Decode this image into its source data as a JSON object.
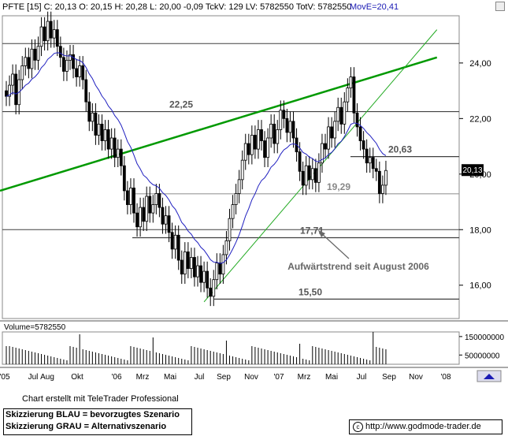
{
  "header": {
    "symbol_line": "PFTE [15] C: 20,13 O: 20,15 H: 20,28 L: 20,00 -0,09 TckV: 129 LV: 5782550 TotV: 5782550",
    "moving_average": "MovE=20,41"
  },
  "colors": {
    "candle_up": "#ffffff",
    "candle_down": "#000000",
    "moving_average": "#2020c0",
    "trend_main": "#009900",
    "trend_up": "#22aa22",
    "support_resistance": "#404040",
    "grid": "#aaaaaa"
  },
  "chart_data": {
    "type": "candlestick",
    "title": "",
    "y_axis": {
      "ticks": [
        "24,00",
        "22,00",
        "20,00",
        "18,00",
        "16,00"
      ],
      "ylim": [
        14.8,
        25.7
      ]
    },
    "x_axis": {
      "ticks": [
        "'05",
        "Jul",
        "Aug",
        "Okt",
        "'06",
        "Mrz",
        "Mai",
        "Jul",
        "Sep",
        "Nov",
        "'07",
        "Mrz",
        "Mai",
        "Jul",
        "Sep",
        "Nov",
        "'08"
      ]
    },
    "last_price_label": "20,13",
    "levels": [
      {
        "label": "22,25",
        "value": 22.25
      },
      {
        "label": "20,63",
        "value": 20.63
      },
      {
        "label": "19,29",
        "value": 19.29
      },
      {
        "label": "17,71",
        "value": 17.71
      },
      {
        "label": "15,50",
        "value": 15.5
      }
    ],
    "extra_lines": [
      24.7,
      18.0
    ],
    "trend_lines": [
      {
        "name": "main",
        "from": [
          0,
          19.4
        ],
        "to": [
          135,
          24.2
        ]
      },
      {
        "name": "uptrend",
        "from": [
          62,
          15.4
        ],
        "to": [
          135,
          25.2
        ]
      }
    ],
    "annotation": "Aufwärtstrend seit August 2006",
    "closes": [
      22.8,
      23.2,
      23.6,
      22.5,
      23.4,
      23.9,
      24.2,
      23.8,
      24.5,
      24.1,
      24.6,
      25.3,
      24.8,
      25.5,
      24.9,
      25.2,
      24.6,
      24.2,
      23.7,
      24.1,
      24.3,
      23.8,
      23.5,
      23.9,
      23.4,
      22.6,
      21.9,
      22.2,
      21.4,
      21.8,
      21.2,
      21.6,
      20.9,
      21.3,
      20.6,
      20.9,
      20.3,
      19.4,
      18.9,
      19.5,
      18.6,
      18.1,
      18.8,
      18.3,
      19.2,
      18.6,
      18.9,
      19.3,
      18.8,
      18.2,
      18.5,
      17.9,
      17.3,
      17.8,
      16.9,
      16.4,
      17.2,
      16.6,
      17.0,
      16.3,
      16.7,
      16.1,
      16.5,
      15.9,
      15.6,
      16.2,
      16.8,
      16.4,
      17.1,
      17.6,
      18.4,
      18.9,
      19.3,
      19.8,
      20.5,
      21.1,
      20.7,
      21.4,
      20.9,
      21.6,
      21.2,
      20.6,
      21.3,
      21.8,
      21.1,
      21.6,
      22.3,
      22.0,
      21.5,
      21.9,
      21.3,
      20.8,
      20.1,
      19.6,
      20.3,
      19.8,
      20.2,
      19.7,
      20.4,
      21.1,
      20.9,
      21.7,
      21.3,
      21.9,
      22.4,
      21.8,
      22.6,
      23.1,
      23.5,
      22.2,
      21.7,
      21.2,
      20.9,
      20.4,
      20.6,
      20.2,
      20.1,
      19.3,
      19.6,
      20.13
    ],
    "volume": {
      "label": "Volume=5782550",
      "ticks": [
        "150000000",
        "50000000"
      ],
      "max": 175000000
    }
  },
  "footer": {
    "credit": "Chart erstellt mit TeleTrader Professional",
    "legend_blue": "Skizzierung BLAU = bevorzugtes Szenario",
    "legend_grey": "Skizzierung GRAU = Alternativszenario",
    "copyright": "c",
    "url": "http://www.godmode-trader.de"
  }
}
